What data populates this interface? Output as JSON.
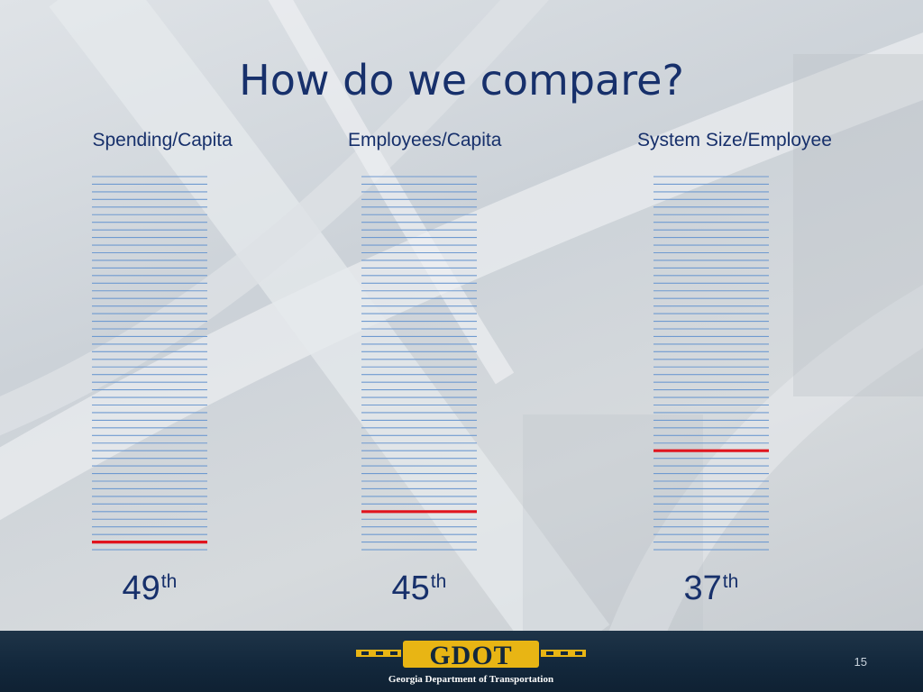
{
  "slide": {
    "title": "How do we compare?",
    "page_number": "15"
  },
  "footer": {
    "logo_word": "GDOT",
    "organization": "Georgia Department of Transportation"
  },
  "colors": {
    "title": "#17306b",
    "line": "#6f9ad0",
    "highlight": "#e0141e",
    "footer": "#13283c",
    "logo_gold": "#e8b514"
  },
  "chart_data": {
    "type": "table",
    "total_states": 50,
    "columns": [
      {
        "label": "Spending/Capita",
        "rank": 49,
        "suffix": "th"
      },
      {
        "label": "Employees/Capita",
        "rank": 45,
        "suffix": "th"
      },
      {
        "label": "System Size/Employee",
        "rank": 37,
        "suffix": "th"
      }
    ]
  }
}
